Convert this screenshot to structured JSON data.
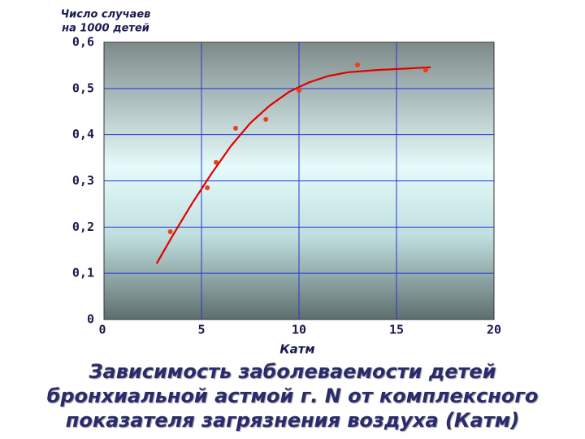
{
  "chart_data": {
    "type": "scatter",
    "title": [
      "Зависимость заболеваемости детей",
      "бронхиальной астмой г. N от комплексного",
      "показателя загрязнения воздуха (Катм)"
    ],
    "ylabel": [
      "Число случаев",
      "на 1000 детей"
    ],
    "xlabel": "Катм",
    "xlim": [
      0,
      20
    ],
    "xticks": [
      0,
      5,
      10,
      15,
      20
    ],
    "ylim": [
      0,
      0.6
    ],
    "yticks": [
      0,
      {
        "value": 0.1,
        "label": "0,1"
      },
      {
        "value": 0.2,
        "label": "0,2"
      },
      {
        "value": 0.3,
        "label": "0,3"
      },
      {
        "value": 0.4,
        "label": "0,4"
      },
      {
        "value": 0.5,
        "label": "0,5"
      },
      {
        "value": 0.6,
        "label": "0,6"
      }
    ],
    "grid": true,
    "grid_color": "#2233dd",
    "series": [
      {
        "type": "scatter",
        "color": "#e8401c",
        "x": [
          3.4,
          5.3,
          5.75,
          6.75,
          8.3,
          10.0,
          13.0,
          16.5
        ],
        "values": [
          0.19,
          0.285,
          0.34,
          0.414,
          0.433,
          0.496,
          0.551,
          0.54
        ]
      },
      {
        "type": "line",
        "color": "#e00000",
        "x": [
          2.7,
          3.5,
          4.5,
          5.5,
          6.5,
          7.5,
          8.5,
          9.5,
          10.5,
          11.5,
          12.5,
          14.0,
          15.5,
          16.75
        ],
        "values": [
          0.121,
          0.18,
          0.25,
          0.315,
          0.375,
          0.425,
          0.463,
          0.493,
          0.513,
          0.527,
          0.535,
          0.54,
          0.543,
          0.546
        ]
      }
    ]
  }
}
